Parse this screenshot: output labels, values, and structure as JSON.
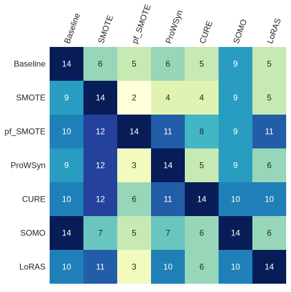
{
  "chart_data": {
    "type": "heatmap",
    "title": "",
    "xlabel": "",
    "ylabel": "",
    "x_categories": [
      "Baseline",
      "SMOTE",
      "pf_SMOTE",
      "ProWSyn",
      "CURE",
      "SOMO",
      "LoRAS"
    ],
    "y_categories": [
      "Baseline",
      "SMOTE",
      "pf_SMOTE",
      "ProWSyn",
      "CURE",
      "SOMO",
      "LoRAS"
    ],
    "values": [
      [
        14,
        6,
        5,
        6,
        5,
        9,
        5
      ],
      [
        9,
        14,
        2,
        4,
        4,
        9,
        5
      ],
      [
        10,
        12,
        14,
        11,
        8,
        9,
        11
      ],
      [
        9,
        12,
        3,
        14,
        5,
        9,
        6
      ],
      [
        10,
        12,
        6,
        11,
        14,
        10,
        10
      ],
      [
        14,
        7,
        5,
        7,
        6,
        14,
        6
      ],
      [
        10,
        11,
        3,
        10,
        6,
        10,
        14
      ]
    ],
    "value_range": [
      2,
      14
    ],
    "colormap": "YlGnBu",
    "x_tick_position": "top",
    "x_tick_rotation_deg": 70,
    "colorbar": false,
    "grid": false
  }
}
